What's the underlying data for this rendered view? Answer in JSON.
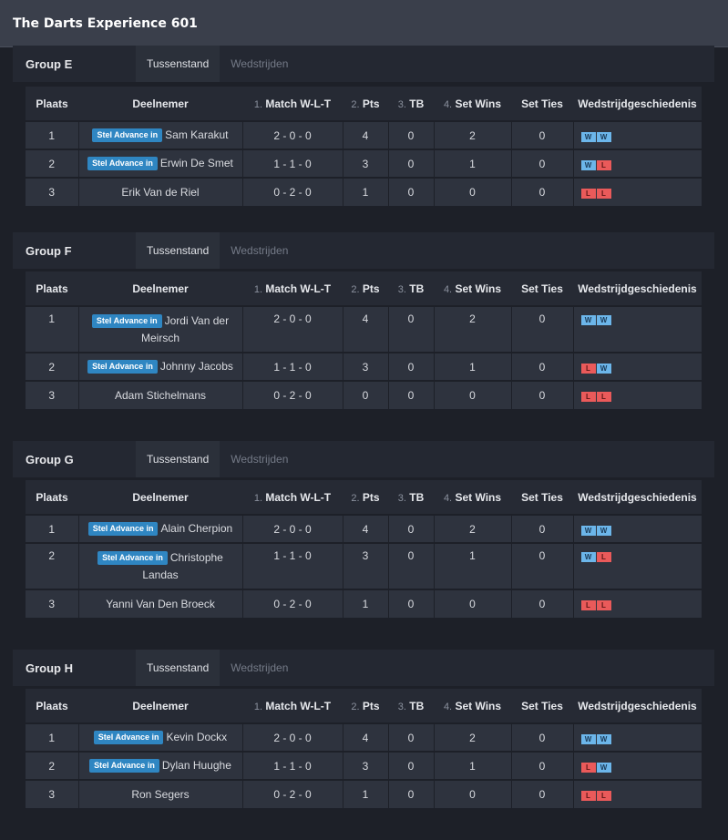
{
  "window": {
    "title": "The Darts Experience 601"
  },
  "tabs": {
    "standings": "Tussenstand",
    "matches": "Wedstrijden"
  },
  "advance_label": "Stel Advance in",
  "columns": {
    "place": "Plaats",
    "participant": "Deelnemer",
    "match_num": "1.",
    "match": "Match W-L-T",
    "pts_num": "2.",
    "pts": "Pts",
    "tb_num": "3.",
    "tb": "TB",
    "setwins_num": "4.",
    "setwins": "Set Wins",
    "setties": "Set Ties",
    "history": "Wedstrijdgeschiedenis"
  },
  "colors": {
    "win": "#6cb6ea",
    "loss": "#ea5a5a",
    "advance": "#2f86c2"
  },
  "groups": [
    {
      "name": "Group E",
      "rows": [
        {
          "place": "1",
          "name": "Sam Karakut",
          "advance": true,
          "record": "2 - 0 - 0",
          "pts": "4",
          "tb": "0",
          "set_wins": "2",
          "set_ties": "0",
          "history": [
            "W",
            "W"
          ]
        },
        {
          "place": "2",
          "name": "Erwin De Smet",
          "advance": true,
          "record": "1 - 1 - 0",
          "pts": "3",
          "tb": "0",
          "set_wins": "1",
          "set_ties": "0",
          "history": [
            "W",
            "L"
          ]
        },
        {
          "place": "3",
          "name": "Erik Van de Riel",
          "advance": false,
          "record": "0 - 2 - 0",
          "pts": "1",
          "tb": "0",
          "set_wins": "0",
          "set_ties": "0",
          "history": [
            "L",
            "L"
          ]
        }
      ]
    },
    {
      "name": "Group F",
      "rows": [
        {
          "place": "1",
          "name": "Jordi Van der Meirsch",
          "advance": true,
          "record": "2 - 0 - 0",
          "pts": "4",
          "tb": "0",
          "set_wins": "2",
          "set_ties": "0",
          "history": [
            "W",
            "W"
          ],
          "tall": true
        },
        {
          "place": "2",
          "name": "Johnny Jacobs",
          "advance": true,
          "record": "1 - 1 - 0",
          "pts": "3",
          "tb": "0",
          "set_wins": "1",
          "set_ties": "0",
          "history": [
            "L",
            "W"
          ]
        },
        {
          "place": "3",
          "name": "Adam Stichelmans",
          "advance": false,
          "record": "0 - 2 - 0",
          "pts": "0",
          "tb": "0",
          "set_wins": "0",
          "set_ties": "0",
          "history": [
            "L",
            "L"
          ]
        }
      ]
    },
    {
      "name": "Group G",
      "rows": [
        {
          "place": "1",
          "name": "Alain Cherpion",
          "advance": true,
          "record": "2 - 0 - 0",
          "pts": "4",
          "tb": "0",
          "set_wins": "2",
          "set_ties": "0",
          "history": [
            "W",
            "W"
          ]
        },
        {
          "place": "2",
          "name": "Christophe Landas",
          "advance": true,
          "record": "1 - 1 - 0",
          "pts": "3",
          "tb": "0",
          "set_wins": "1",
          "set_ties": "0",
          "history": [
            "W",
            "L"
          ],
          "tall": true
        },
        {
          "place": "3",
          "name": "Yanni Van Den Broeck",
          "advance": false,
          "record": "0 - 2 - 0",
          "pts": "1",
          "tb": "0",
          "set_wins": "0",
          "set_ties": "0",
          "history": [
            "L",
            "L"
          ]
        }
      ]
    },
    {
      "name": "Group H",
      "rows": [
        {
          "place": "1",
          "name": "Kevin Dockx",
          "advance": true,
          "record": "2 - 0 - 0",
          "pts": "4",
          "tb": "0",
          "set_wins": "2",
          "set_ties": "0",
          "history": [
            "W",
            "W"
          ]
        },
        {
          "place": "2",
          "name": "Dylan Huughe",
          "advance": true,
          "record": "1 - 1 - 0",
          "pts": "3",
          "tb": "0",
          "set_wins": "1",
          "set_ties": "0",
          "history": [
            "L",
            "W"
          ]
        },
        {
          "place": "3",
          "name": "Ron Segers",
          "advance": false,
          "record": "0 - 2 - 0",
          "pts": "1",
          "tb": "0",
          "set_wins": "0",
          "set_ties": "0",
          "history": [
            "L",
            "L"
          ]
        }
      ]
    }
  ]
}
